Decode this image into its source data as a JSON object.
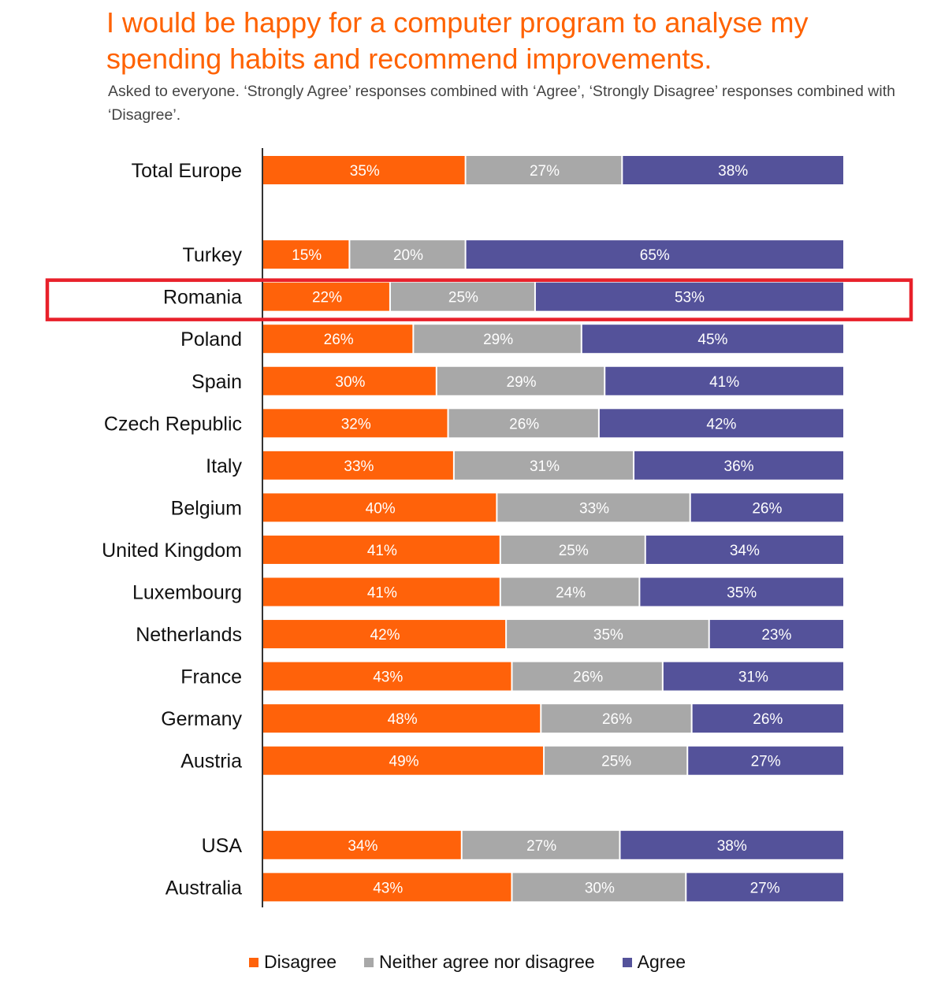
{
  "chart_data": {
    "type": "bar",
    "orientation": "horizontal",
    "stacked": true,
    "title": "I would be happy for a computer program to analyse my spending habits and recommend improvements.",
    "subtitle": "Asked to everyone. ‘Strongly Agree’ responses combined with ‘Agree’, ‘Strongly Disagree’ responses combined with ‘Disagree’.",
    "xlabel": "",
    "ylabel": "",
    "xlim": [
      0,
      100
    ],
    "grid": false,
    "legend_position": "bottom",
    "categories": [
      "Total Europe",
      "",
      "Turkey",
      "Romania",
      "Poland",
      "Spain",
      "Czech Republic",
      "Italy",
      "Belgium",
      "United Kingdom",
      "Luxembourg",
      "Netherlands",
      "France",
      "Germany",
      "Austria",
      "",
      "USA",
      "Australia"
    ],
    "series": [
      {
        "name": "Disagree",
        "color": "#ff620a",
        "values": [
          35,
          null,
          15,
          22,
          26,
          30,
          32,
          33,
          40,
          41,
          41,
          42,
          43,
          48,
          49,
          null,
          34,
          43
        ]
      },
      {
        "name": "Neither agree nor disagree",
        "color": "#a8a8a8",
        "values": [
          27,
          null,
          20,
          25,
          29,
          29,
          26,
          31,
          33,
          25,
          24,
          35,
          26,
          26,
          25,
          null,
          27,
          30
        ]
      },
      {
        "name": "Agree",
        "color": "#54529a",
        "values": [
          38,
          null,
          65,
          53,
          45,
          41,
          42,
          36,
          26,
          34,
          35,
          23,
          31,
          26,
          27,
          null,
          38,
          27
        ]
      }
    ],
    "value_labels": [
      [
        "35%",
        "27%",
        "38%"
      ],
      null,
      [
        "15%",
        "20%",
        "65%"
      ],
      [
        "22%",
        "25%",
        "53%"
      ],
      [
        "26%",
        "29%",
        "45%"
      ],
      [
        "30%",
        "29%",
        "41%"
      ],
      [
        "32%",
        "26%",
        "42%"
      ],
      [
        "33%",
        "31%",
        "36%"
      ],
      [
        "40%",
        "33%",
        "26%"
      ],
      [
        "41%",
        "25%",
        "34%"
      ],
      [
        "41%",
        "24%",
        "35%"
      ],
      [
        "42%",
        "35%",
        "23%"
      ],
      [
        "43%",
        "26%",
        "31%"
      ],
      [
        "48%",
        "26%",
        "26%"
      ],
      [
        "49%",
        "25%",
        "27%"
      ],
      null,
      [
        "34%",
        "27%",
        "38%"
      ],
      [
        "43%",
        "30%",
        "27%"
      ]
    ],
    "highlight": {
      "category": "Romania",
      "color": "#e8202a"
    }
  },
  "legend": {
    "items": [
      {
        "label": "Disagree",
        "color": "#ff620a"
      },
      {
        "label": "Neither agree nor disagree",
        "color": "#a8a8a8"
      },
      {
        "label": "Agree",
        "color": "#54529a"
      }
    ]
  },
  "colors": {
    "title": "#ff6200",
    "axis": "#333333",
    "highlight": "#e8202a"
  }
}
